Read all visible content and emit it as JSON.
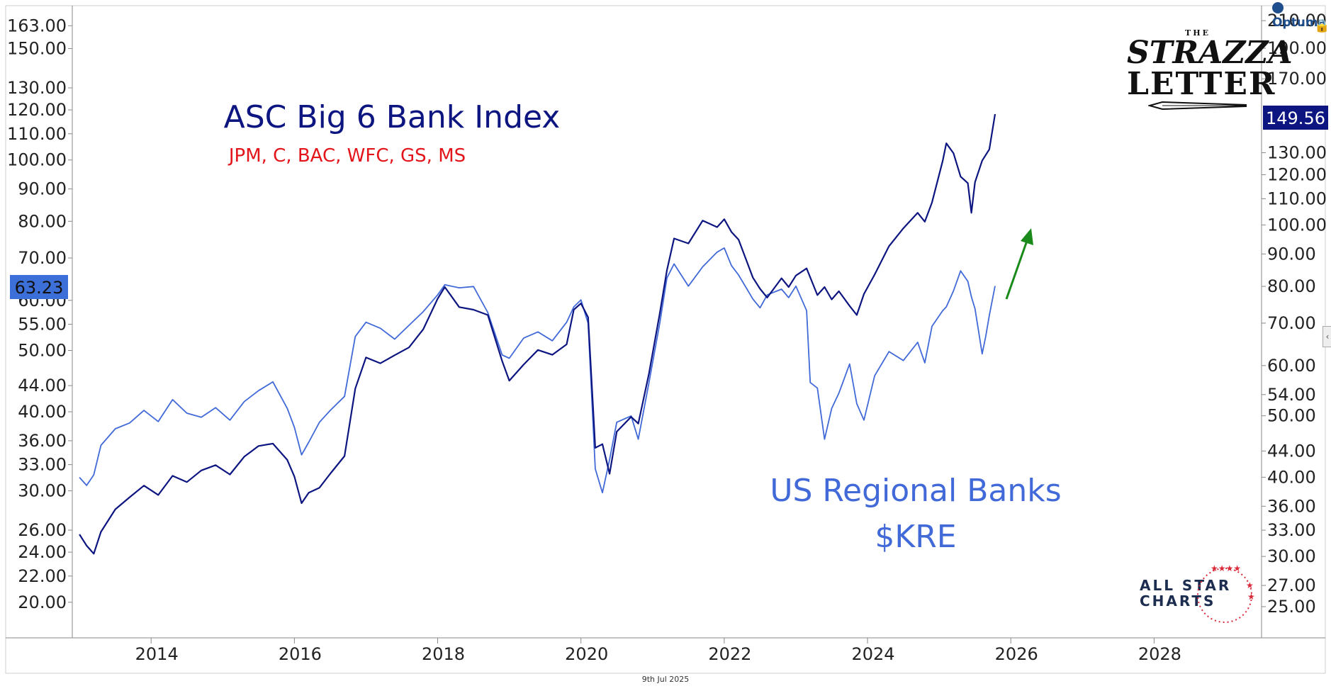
{
  "chart_data": {
    "type": "line",
    "title": "ASC Big 6 Bank Index",
    "subtitle": "JPM, C, BAC, WFC, GS, MS",
    "series_label_2": "US Regional Banks",
    "series_label_2b": "$KRE",
    "left_axis": {
      "scale": "log",
      "range": [
        18.5,
        170
      ],
      "ticks": [
        "163.00",
        "150.00",
        "130.00",
        "120.00",
        "110.00",
        "100.00",
        "90.00",
        "80.00",
        "70.00",
        "60.00",
        "55.00",
        "50.00",
        "44.00",
        "40.00",
        "36.00",
        "33.00",
        "30.00",
        "26.00",
        "24.00",
        "22.00",
        "20.00"
      ],
      "last_value": "63.23"
    },
    "right_axis": {
      "scale": "log",
      "range": [
        23.5,
        215
      ],
      "ticks": [
        "210.00",
        "190.00",
        "170.00",
        "130.00",
        "120.00",
        "110.00",
        "100.00",
        "90.00",
        "80.00",
        "70.00",
        "60.00",
        "54.00",
        "50.00",
        "44.00",
        "40.00",
        "36.00",
        "33.00",
        "30.00",
        "27.00",
        "25.00"
      ],
      "last_value": "149.56"
    },
    "x_axis": {
      "range": [
        2012.9,
        2029.5
      ],
      "ticks": [
        "2014",
        "2016",
        "2018",
        "2020",
        "2022",
        "2024",
        "2026",
        "2028"
      ]
    },
    "series": [
      {
        "name": "ASC Big 6 Bank Index",
        "axis": "right",
        "color": "#0d1580",
        "points": [
          [
            2013.0,
            32.5
          ],
          [
            2013.1,
            31.2
          ],
          [
            2013.2,
            30.3
          ],
          [
            2013.3,
            32.8
          ],
          [
            2013.5,
            35.6
          ],
          [
            2013.7,
            37.2
          ],
          [
            2013.9,
            38.8
          ],
          [
            2014.1,
            37.5
          ],
          [
            2014.3,
            40.2
          ],
          [
            2014.5,
            39.3
          ],
          [
            2014.7,
            41.0
          ],
          [
            2014.9,
            41.8
          ],
          [
            2015.1,
            40.4
          ],
          [
            2015.3,
            43.1
          ],
          [
            2015.5,
            44.8
          ],
          [
            2015.7,
            45.2
          ],
          [
            2015.9,
            42.6
          ],
          [
            2016.0,
            40.1
          ],
          [
            2016.1,
            36.4
          ],
          [
            2016.2,
            37.8
          ],
          [
            2016.35,
            38.5
          ],
          [
            2016.5,
            40.5
          ],
          [
            2016.7,
            43.2
          ],
          [
            2016.85,
            55.2
          ],
          [
            2017.0,
            61.8
          ],
          [
            2017.2,
            60.5
          ],
          [
            2017.4,
            62.3
          ],
          [
            2017.6,
            64.1
          ],
          [
            2017.8,
            68.5
          ],
          [
            2018.0,
            76.5
          ],
          [
            2018.1,
            79.8
          ],
          [
            2018.3,
            74.2
          ],
          [
            2018.5,
            73.5
          ],
          [
            2018.7,
            72.1
          ],
          [
            2018.9,
            61.0
          ],
          [
            2019.0,
            56.8
          ],
          [
            2019.2,
            60.2
          ],
          [
            2019.4,
            63.5
          ],
          [
            2019.6,
            62.4
          ],
          [
            2019.8,
            64.8
          ],
          [
            2019.9,
            73.5
          ],
          [
            2020.0,
            75.2
          ],
          [
            2020.1,
            71.5
          ],
          [
            2020.2,
            44.5
          ],
          [
            2020.3,
            45.1
          ],
          [
            2020.4,
            40.5
          ],
          [
            2020.5,
            47.2
          ],
          [
            2020.7,
            49.8
          ],
          [
            2020.8,
            48.6
          ],
          [
            2020.95,
            58.3
          ],
          [
            2021.1,
            72.5
          ],
          [
            2021.2,
            84.8
          ],
          [
            2021.3,
            95.2
          ],
          [
            2021.5,
            93.5
          ],
          [
            2021.7,
            101.6
          ],
          [
            2021.9,
            99.2
          ],
          [
            2022.0,
            102.1
          ],
          [
            2022.1,
            97.5
          ],
          [
            2022.2,
            94.8
          ],
          [
            2022.4,
            82.6
          ],
          [
            2022.5,
            79.3
          ],
          [
            2022.6,
            76.8
          ],
          [
            2022.8,
            82.4
          ],
          [
            2022.9,
            79.8
          ],
          [
            2023.0,
            83.2
          ],
          [
            2023.15,
            85.4
          ],
          [
            2023.3,
            77.5
          ],
          [
            2023.4,
            79.8
          ],
          [
            2023.5,
            76.3
          ],
          [
            2023.6,
            78.6
          ],
          [
            2023.75,
            74.5
          ],
          [
            2023.85,
            72.1
          ],
          [
            2023.95,
            77.8
          ],
          [
            2024.1,
            83.5
          ],
          [
            2024.3,
            92.6
          ],
          [
            2024.5,
            98.8
          ],
          [
            2024.7,
            104.5
          ],
          [
            2024.8,
            101.2
          ],
          [
            2024.9,
            108.5
          ],
          [
            2025.05,
            126.3
          ],
          [
            2025.1,
            134.5
          ],
          [
            2025.2,
            129.8
          ],
          [
            2025.3,
            119.2
          ],
          [
            2025.4,
            116.4
          ],
          [
            2025.45,
            104.5
          ],
          [
            2025.5,
            116.8
          ],
          [
            2025.6,
            126.3
          ],
          [
            2025.7,
            131.6
          ],
          [
            2025.78,
            149.56
          ]
        ]
      },
      {
        "name": "US Regional Banks",
        "axis": "left",
        "color": "#4169d8",
        "points": [
          [
            2013.0,
            31.5
          ],
          [
            2013.1,
            30.6
          ],
          [
            2013.2,
            31.8
          ],
          [
            2013.3,
            35.4
          ],
          [
            2013.5,
            37.6
          ],
          [
            2013.7,
            38.4
          ],
          [
            2013.9,
            40.2
          ],
          [
            2014.1,
            38.6
          ],
          [
            2014.3,
            41.8
          ],
          [
            2014.5,
            39.8
          ],
          [
            2014.7,
            39.2
          ],
          [
            2014.9,
            40.6
          ],
          [
            2015.1,
            38.8
          ],
          [
            2015.3,
            41.5
          ],
          [
            2015.5,
            43.2
          ],
          [
            2015.7,
            44.6
          ],
          [
            2015.9,
            40.5
          ],
          [
            2016.0,
            37.8
          ],
          [
            2016.1,
            34.2
          ],
          [
            2016.2,
            35.8
          ],
          [
            2016.35,
            38.5
          ],
          [
            2016.5,
            40.2
          ],
          [
            2016.7,
            42.3
          ],
          [
            2016.85,
            52.6
          ],
          [
            2017.0,
            55.4
          ],
          [
            2017.2,
            54.2
          ],
          [
            2017.4,
            52.1
          ],
          [
            2017.6,
            54.8
          ],
          [
            2017.8,
            57.6
          ],
          [
            2018.0,
            61.2
          ],
          [
            2018.1,
            63.5
          ],
          [
            2018.3,
            62.8
          ],
          [
            2018.5,
            63.1
          ],
          [
            2018.7,
            57.4
          ],
          [
            2018.9,
            49.2
          ],
          [
            2019.0,
            48.6
          ],
          [
            2019.2,
            52.3
          ],
          [
            2019.4,
            53.5
          ],
          [
            2019.6,
            51.8
          ],
          [
            2019.8,
            55.4
          ],
          [
            2019.9,
            58.6
          ],
          [
            2020.0,
            60.1
          ],
          [
            2020.1,
            55.2
          ],
          [
            2020.2,
            32.5
          ],
          [
            2020.3,
            29.8
          ],
          [
            2020.4,
            33.6
          ],
          [
            2020.5,
            38.5
          ],
          [
            2020.7,
            39.4
          ],
          [
            2020.8,
            36.2
          ],
          [
            2020.95,
            44.5
          ],
          [
            2021.1,
            55.2
          ],
          [
            2021.2,
            65.1
          ],
          [
            2021.3,
            68.5
          ],
          [
            2021.5,
            63.2
          ],
          [
            2021.7,
            67.8
          ],
          [
            2021.9,
            71.5
          ],
          [
            2022.0,
            72.6
          ],
          [
            2022.1,
            68.1
          ],
          [
            2022.2,
            65.8
          ],
          [
            2022.4,
            60.3
          ],
          [
            2022.5,
            58.4
          ],
          [
            2022.6,
            61.2
          ],
          [
            2022.8,
            62.5
          ],
          [
            2022.9,
            60.6
          ],
          [
            2023.0,
            63.2
          ],
          [
            2023.15,
            57.8
          ],
          [
            2023.2,
            44.5
          ],
          [
            2023.3,
            43.6
          ],
          [
            2023.4,
            36.2
          ],
          [
            2023.5,
            40.5
          ],
          [
            2023.6,
            42.8
          ],
          [
            2023.75,
            47.6
          ],
          [
            2023.85,
            41.2
          ],
          [
            2023.95,
            38.8
          ],
          [
            2024.1,
            45.6
          ],
          [
            2024.3,
            49.8
          ],
          [
            2024.5,
            48.2
          ],
          [
            2024.7,
            51.5
          ],
          [
            2024.8,
            47.8
          ],
          [
            2024.9,
            54.6
          ],
          [
            2025.05,
            57.8
          ],
          [
            2025.1,
            58.6
          ],
          [
            2025.2,
            62.1
          ],
          [
            2025.3,
            66.8
          ],
          [
            2025.4,
            64.3
          ],
          [
            2025.45,
            60.8
          ],
          [
            2025.5,
            58.2
          ],
          [
            2025.6,
            49.4
          ],
          [
            2025.65,
            52.6
          ],
          [
            2025.7,
            56.8
          ],
          [
            2025.78,
            63.23
          ]
        ]
      }
    ],
    "grid": false
  },
  "footer": {
    "date": "9th Jul 2025"
  },
  "branding": {
    "optuma": "Optuma",
    "strazza_the": "THE",
    "strazza_l1": "STRAZZA",
    "strazza_l2": "LETTER",
    "allstar_l1": "ALL STAR",
    "allstar_l2": "CHARTS"
  },
  "colors": {
    "big6": "#0d1580",
    "kre": "#4169d8",
    "subtitle": "#e4141b",
    "arrow": "#1a8a1a",
    "axis": "#888888"
  },
  "icons": {
    "lock": "lock-icon",
    "collapse": "chevron-left-icon",
    "arrow": "arrow-up-right-icon"
  }
}
